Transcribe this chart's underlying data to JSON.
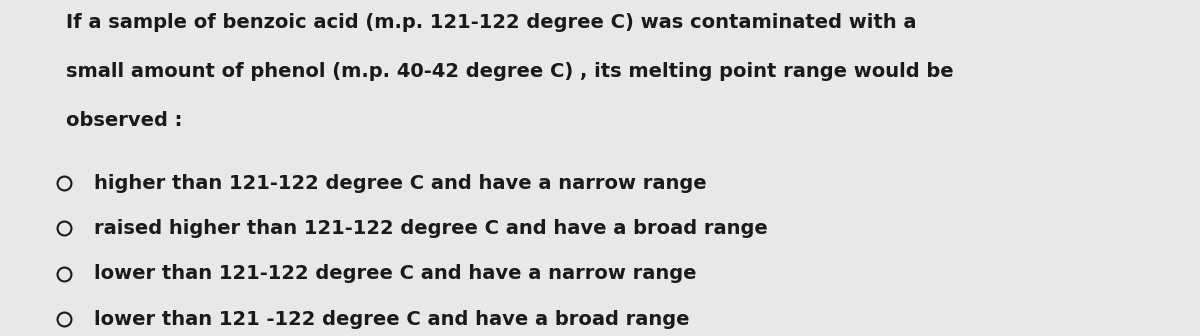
{
  "background_color": "#e8e8e8",
  "text_color": "#1a1a1a",
  "question_line1": "If a sample of benzoic acid (m.p. 121-122 degree C) was contaminated with a",
  "question_line2": "small amount of phenol (m.p. 40-42 degree C) , its melting point range would be",
  "question_line3": "observed :",
  "options": [
    "higher than 121-122 degree C and have a narrow range",
    "raised higher than 121-122 degree C and have a broad range",
    "lower than 121-122 degree C and have a narrow range",
    "lower than 121 -122 degree C and have a broad range"
  ],
  "question_fontsize": 14,
  "option_fontsize": 14,
  "font_family": "DejaVu Sans"
}
